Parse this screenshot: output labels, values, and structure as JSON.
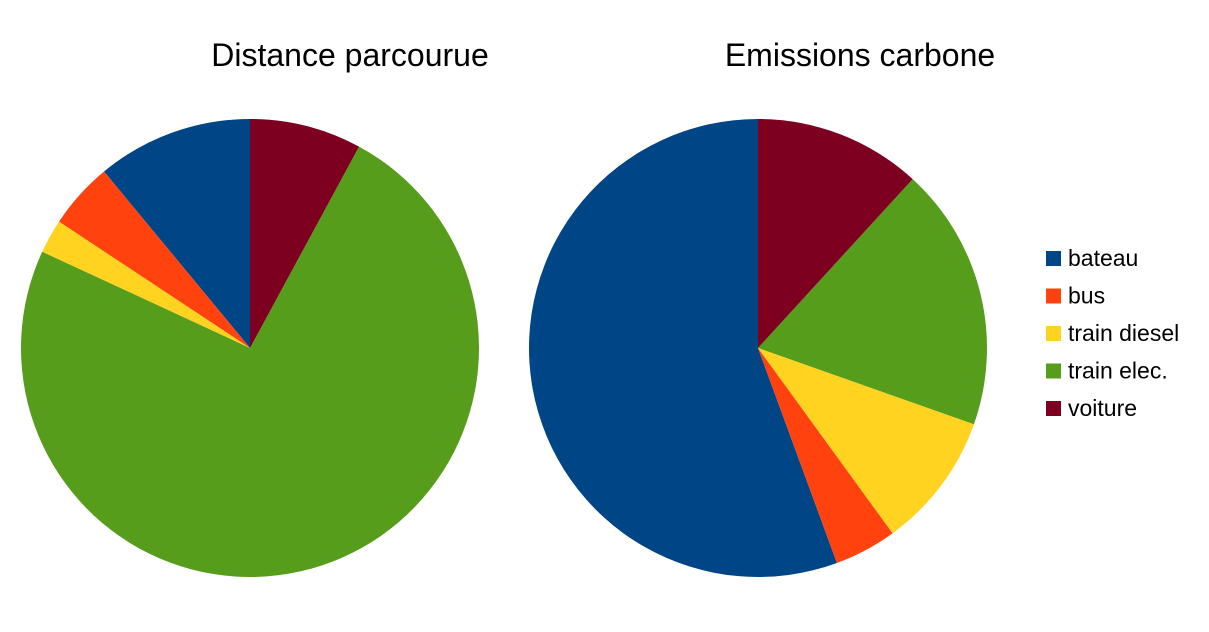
{
  "chart_data": [
    {
      "type": "pie",
      "title": "Distance parcourue",
      "categories": [
        "bateau",
        "bus",
        "train diesel",
        "train elec.",
        "voiture"
      ],
      "values": [
        11,
        4.7,
        2.4,
        74,
        7.9
      ],
      "colors": [
        "#004586",
        "#ff420e",
        "#ffd320",
        "#579d1c",
        "#7e0021"
      ]
    },
    {
      "type": "pie",
      "title": "Emissions carbone",
      "categories": [
        "bateau",
        "bus",
        "train diesel",
        "train elec.",
        "voiture"
      ],
      "values": [
        55.6,
        4.4,
        9.6,
        18.6,
        11.8
      ],
      "colors": [
        "#004586",
        "#ff420e",
        "#ffd320",
        "#579d1c",
        "#7e0021"
      ]
    }
  ],
  "legend": {
    "placement": "right",
    "items": [
      {
        "label": "bateau",
        "color": "#004586"
      },
      {
        "label": "bus",
        "color": "#ff420e"
      },
      {
        "label": "train diesel",
        "color": "#ffd320"
      },
      {
        "label": "train elec.",
        "color": "#579d1c"
      },
      {
        "label": "voiture",
        "color": "#7e0021"
      }
    ]
  }
}
